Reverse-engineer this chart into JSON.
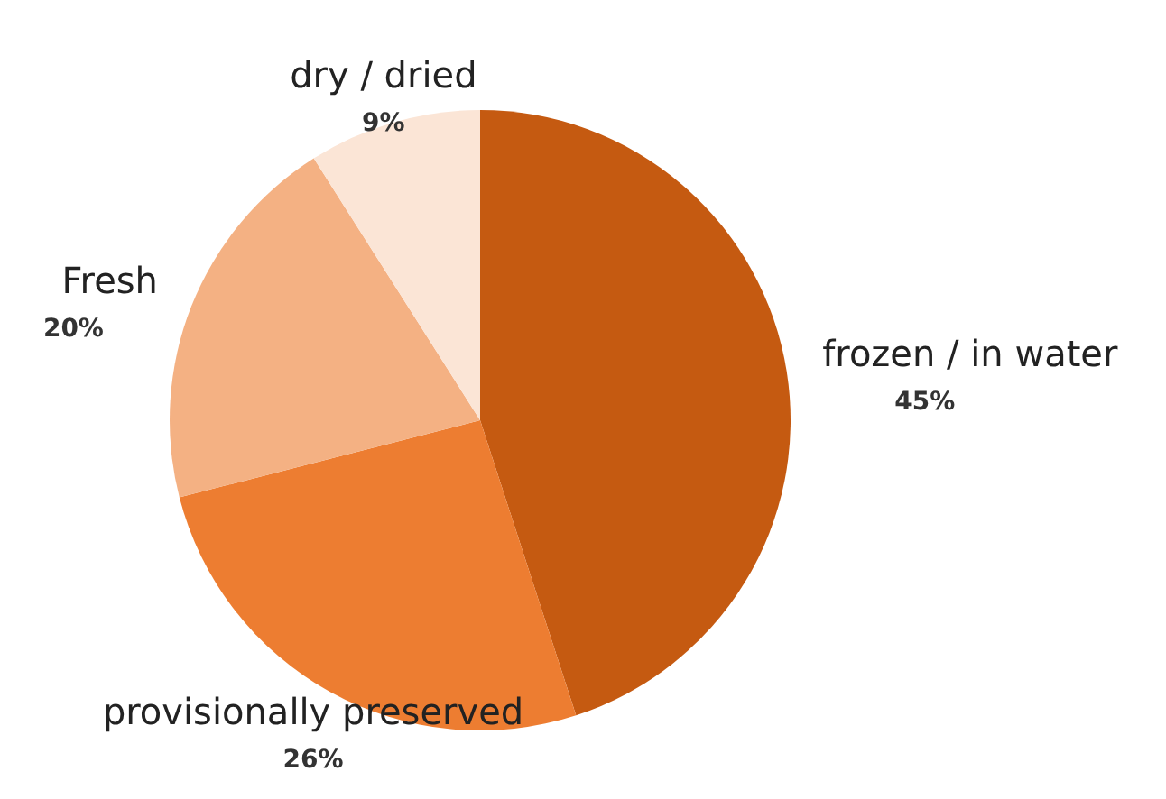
{
  "chart_data": {
    "type": "pie",
    "categories": [
      "frozen / in water",
      "provisionally preserved",
      "Fresh",
      "dry / dried"
    ],
    "values": [
      45,
      26,
      20,
      9
    ],
    "colors": [
      "#c55a11",
      "#ed7d31",
      "#f4b183",
      "#fbe5d6"
    ],
    "value_labels": [
      "45%",
      "26%",
      "20%",
      "9%"
    ]
  }
}
